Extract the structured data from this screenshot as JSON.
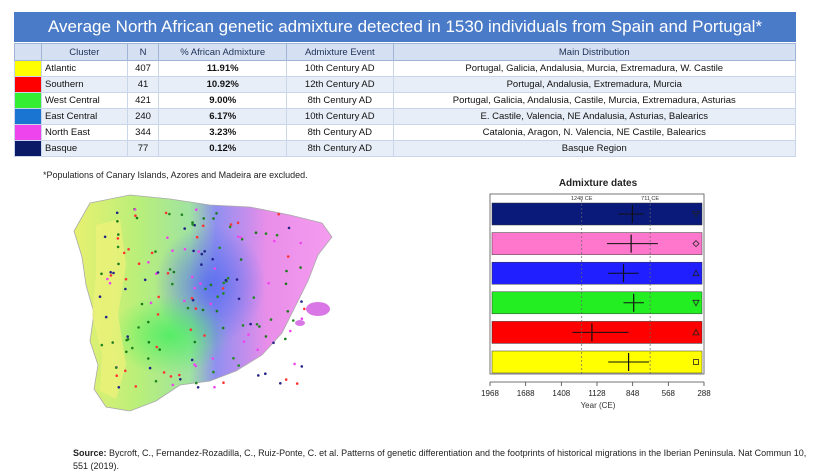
{
  "title": "Average North African genetic admixture detected in 1530 individuals from Spain and Portugal*",
  "table": {
    "headers": [
      "Cluster",
      "N",
      "% African Admixture",
      "Admixture Event",
      "Main Distribution"
    ],
    "rows": [
      {
        "color": "#ffff00",
        "cluster": "Atlantic",
        "n": "407",
        "pct": "11.91%",
        "event": "10th Century AD",
        "dist": "Portugal, Galicia, Andalusia, Murcia, Extremadura, W. Castile"
      },
      {
        "color": "#ff0000",
        "cluster": "Southern",
        "n": "41",
        "pct": "10.92%",
        "event": "12th Century AD",
        "dist": "Portugal, Andalusia, Extremadura, Murcia"
      },
      {
        "color": "#33ee33",
        "cluster": "West Central",
        "n": "421",
        "pct": "9.00%",
        "event": "8th Century AD",
        "dist": "Portugal, Galicia, Andalusia, Castile, Murcia, Extremadura, Asturias"
      },
      {
        "color": "#1a75d2",
        "cluster": "East Central",
        "n": "240",
        "pct": "6.17%",
        "event": "10th Century AD",
        "dist": "E. Castile, Valencia, NE Andalusia, Asturias, Balearics"
      },
      {
        "color": "#ee44ee",
        "cluster": "North East",
        "n": "344",
        "pct": "3.23%",
        "event": "8th Century AD",
        "dist": "Catalonia, Aragon, N. Valencia, NE Castile, Balearics"
      },
      {
        "color": "#0a1a66",
        "cluster": "Basque",
        "n": "77",
        "pct": "0.12%",
        "event": "8th Century AD",
        "dist": "Basque Region"
      }
    ]
  },
  "footnote": "*Populations of Canary Islands, Azores and Madeira are excluded.",
  "source_label": "Source:",
  "source_text": " Bycroft, C., Fernandez-Rozadilla, C., Ruiz-Ponte, C. et al. Patterns of genetic differentiation and the footprints of historical migrations in the Iberian Peninsula. Nat Commun 10, 551 (2019).",
  "chart_data": {
    "type": "scatter",
    "title": "Admixture dates",
    "xlabel": "Year (CE)",
    "x_ticks": [
      1968,
      1688,
      1408,
      1128,
      848,
      568,
      288
    ],
    "xlim": [
      1968,
      288
    ],
    "ref_lines": [
      {
        "label": "1248 CE",
        "x": 1248
      },
      {
        "label": "711 CE",
        "x": 711
      }
    ],
    "rows": [
      {
        "color": "#0a1a7a",
        "x": 850,
        "ci": [
          960,
          760
        ],
        "marker": "triangle-down"
      },
      {
        "color": "#ff77cc",
        "x": 860,
        "ci": [
          1050,
          650
        ],
        "marker": "diamond"
      },
      {
        "color": "#1f1fff",
        "x": 920,
        "ci": [
          1040,
          800
        ],
        "marker": "triangle-up"
      },
      {
        "color": "#22ee22",
        "x": 840,
        "ci": [
          920,
          760
        ],
        "marker": "triangle-down"
      },
      {
        "color": "#ff0000",
        "x": 1168,
        "ci": [
          1320,
          880
        ],
        "marker": "triangle-up"
      },
      {
        "color": "#ffff00",
        "x": 880,
        "ci": [
          1040,
          720
        ],
        "marker": "square"
      }
    ]
  }
}
